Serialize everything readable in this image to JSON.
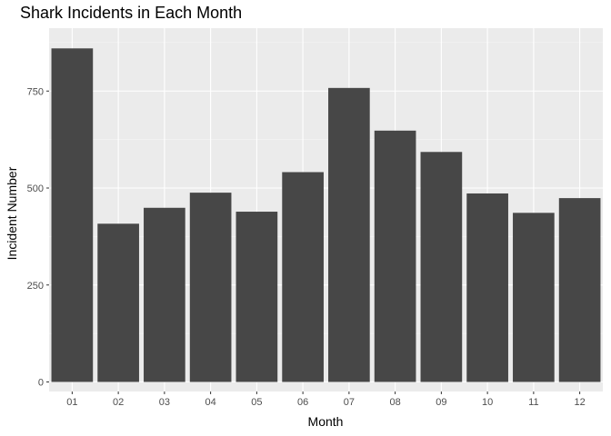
{
  "chart_data": {
    "type": "bar",
    "title": "Shark Incidents in Each Month",
    "xlabel": "Month",
    "ylabel": "Incident Number",
    "categories": [
      "01",
      "02",
      "03",
      "04",
      "05",
      "06",
      "07",
      "08",
      "09",
      "10",
      "11",
      "12"
    ],
    "values": [
      860,
      408,
      449,
      488,
      439,
      541,
      758,
      648,
      593,
      486,
      436,
      474
    ],
    "ylim": [
      0,
      905
    ],
    "yticks": [
      0,
      250,
      500,
      750
    ],
    "ytick_labels": [
      "0",
      "250",
      "500",
      "750"
    ],
    "grid": true,
    "legend": "none",
    "colors": {
      "bar": "#474747",
      "panel": "#ebebeb",
      "grid": "#ffffff"
    }
  }
}
